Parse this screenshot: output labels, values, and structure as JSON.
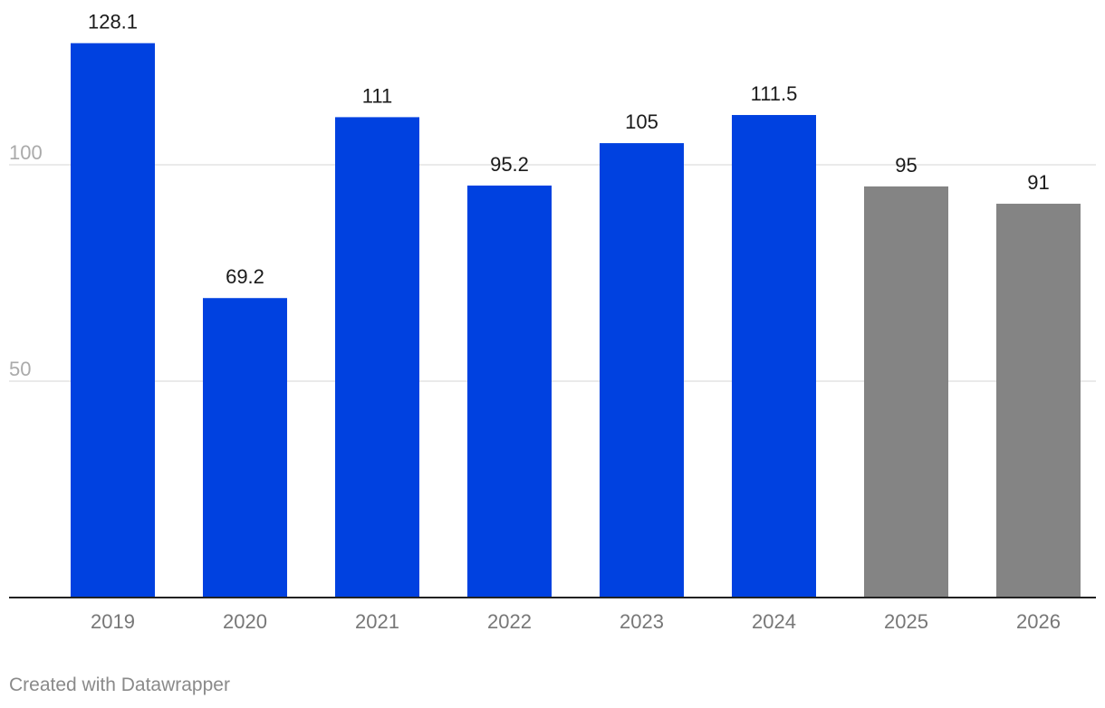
{
  "chart_data": {
    "type": "bar",
    "title": "",
    "xlabel": "",
    "ylabel": "",
    "ylim": [
      0,
      137
    ],
    "yticks": [
      50,
      100
    ],
    "grid": true,
    "categories": [
      "2019",
      "2020",
      "2021",
      "2022",
      "2023",
      "2024",
      "2025",
      "2026"
    ],
    "values": [
      128.1,
      69.2,
      111,
      95.2,
      105,
      111.5,
      95,
      91
    ],
    "labels": [
      "128.1",
      "69.2",
      "111",
      "95.2",
      "105",
      "111.5",
      "95",
      "91"
    ],
    "colors": [
      "#0041e0",
      "#0041e0",
      "#0041e0",
      "#0041e0",
      "#0041e0",
      "#0041e0",
      "#848484",
      "#848484"
    ]
  },
  "footer": {
    "credit": "Created with Datawrapper"
  }
}
